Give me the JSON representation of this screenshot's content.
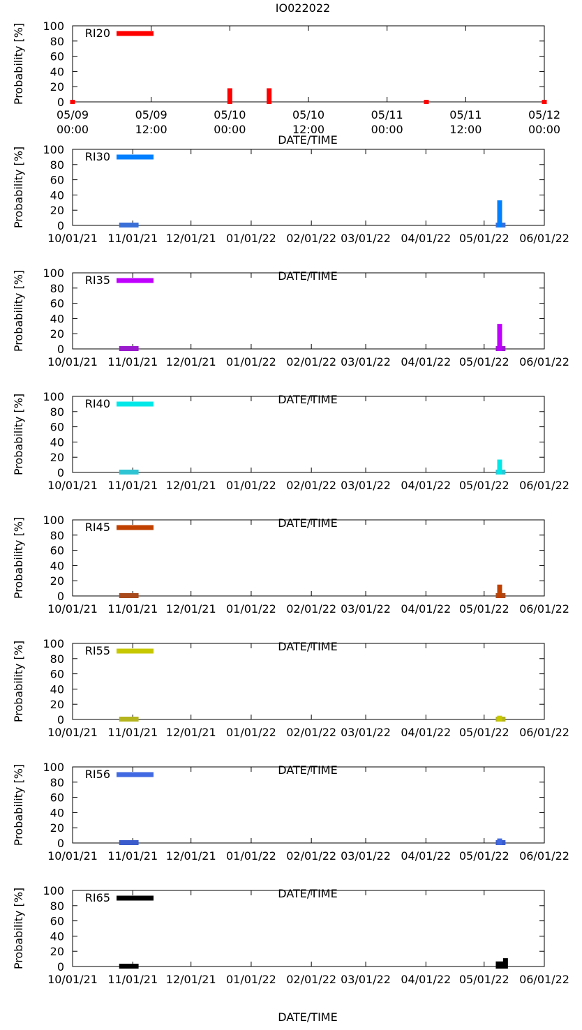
{
  "figure_title": "IO022022",
  "chart_data": [
    {
      "type": "bar",
      "title": "IO022022",
      "xlabel": "DATE/TIME",
      "ylabel": "Probability [%]",
      "series_label": "RI20",
      "color": "#ff0000",
      "x_range": [
        "2022-05-09 00:00",
        "2022-05-12 00:00"
      ],
      "ylim": [
        0,
        100
      ],
      "yticks": [
        "0",
        "20",
        "40",
        "60",
        "80",
        "100"
      ],
      "xticks": [
        {
          "value": "2022-05-09 00:00",
          "line1": "05/09",
          "line2": "00:00"
        },
        {
          "value": "2022-05-09 12:00",
          "line1": "05/09",
          "line2": "12:00"
        },
        {
          "value": "2022-05-10 00:00",
          "line1": "05/10",
          "line2": "00:00"
        },
        {
          "value": "2022-05-10 12:00",
          "line1": "05/10",
          "line2": "12:00"
        },
        {
          "value": "2022-05-11 00:00",
          "line1": "05/11",
          "line2": "00:00"
        },
        {
          "value": "2022-05-11 12:00",
          "line1": "05/11",
          "line2": "12:00"
        },
        {
          "value": "2022-05-12 00:00",
          "line1": "05/12",
          "line2": "00:00"
        }
      ],
      "bars": [
        {
          "x": "2022-05-09 00:00",
          "y": 0
        },
        {
          "x": "2022-05-10 00:00",
          "y": 17
        },
        {
          "x": "2022-05-10 06:00",
          "y": 17
        },
        {
          "x": "2022-05-11 06:00",
          "y": 0
        },
        {
          "x": "2022-05-12 00:00",
          "y": 0
        }
      ]
    },
    {
      "type": "bar",
      "xlabel": "DATE/TIME",
      "ylabel": "Probability [%]",
      "series_label": "RI30",
      "color": "#0080ff",
      "x_range": [
        "2021-10-01",
        "2022-06-01"
      ],
      "ylim": [
        0,
        100
      ],
      "yticks": [
        "0",
        "20",
        "40",
        "60",
        "80",
        "100"
      ],
      "xticks": [
        {
          "value": "2021-10-01",
          "line1": "10/01/21"
        },
        {
          "value": "2021-11-01",
          "line1": "11/01/21"
        },
        {
          "value": "2021-12-01",
          "line1": "12/01/21"
        },
        {
          "value": "2022-01-01",
          "line1": "01/01/22"
        },
        {
          "value": "2022-02-01",
          "line1": "02/01/22"
        },
        {
          "value": "2022-03-01",
          "line1": "03/01/22"
        },
        {
          "value": "2022-04-01",
          "line1": "04/01/22"
        },
        {
          "value": "2022-05-01",
          "line1": "05/01/22"
        },
        {
          "value": "2022-06-01",
          "line1": "06/01/22"
        }
      ],
      "bars": [
        {
          "x": "2022-05-09",
          "y": 32
        }
      ],
      "baseline_segments": [
        {
          "start": "2021-10-25",
          "end": "2021-11-04",
          "y": 0,
          "color": "#3a6fd8"
        },
        {
          "start": "2022-05-07",
          "end": "2022-05-12",
          "y": 0,
          "color": "#3a6fd8"
        }
      ]
    },
    {
      "type": "bar",
      "xlabel": "DATE/TIME",
      "ylabel": "Probability [%]",
      "series_label": "RI35",
      "color": "#c000ff",
      "x_range": [
        "2021-10-01",
        "2022-06-01"
      ],
      "ylim": [
        0,
        100
      ],
      "yticks": [
        "0",
        "20",
        "40",
        "60",
        "80",
        "100"
      ],
      "xticks": [
        {
          "value": "2021-10-01",
          "line1": "10/01/21"
        },
        {
          "value": "2021-11-01",
          "line1": "11/01/21"
        },
        {
          "value": "2021-12-01",
          "line1": "12/01/21"
        },
        {
          "value": "2022-01-01",
          "line1": "01/01/22"
        },
        {
          "value": "2022-02-01",
          "line1": "02/01/22"
        },
        {
          "value": "2022-03-01",
          "line1": "03/01/22"
        },
        {
          "value": "2022-04-01",
          "line1": "04/01/22"
        },
        {
          "value": "2022-05-01",
          "line1": "05/01/22"
        },
        {
          "value": "2022-06-01",
          "line1": "06/01/22"
        }
      ],
      "bars": [
        {
          "x": "2022-05-09",
          "y": 32
        }
      ],
      "baseline_segments": [
        {
          "start": "2021-10-25",
          "end": "2021-11-04",
          "y": 0,
          "color": "#9a1acd"
        },
        {
          "start": "2022-05-07",
          "end": "2022-05-12",
          "y": 0,
          "color": "#9a1acd"
        }
      ]
    },
    {
      "type": "bar",
      "xlabel": "DATE/TIME",
      "ylabel": "Probability [%]",
      "series_label": "RI40",
      "color": "#00e8e8",
      "x_range": [
        "2021-10-01",
        "2022-06-01"
      ],
      "ylim": [
        0,
        100
      ],
      "yticks": [
        "0",
        "20",
        "40",
        "60",
        "80",
        "100"
      ],
      "xticks": [
        {
          "value": "2021-10-01",
          "line1": "10/01/21"
        },
        {
          "value": "2021-11-01",
          "line1": "11/01/21"
        },
        {
          "value": "2021-12-01",
          "line1": "12/01/21"
        },
        {
          "value": "2022-01-01",
          "line1": "01/01/22"
        },
        {
          "value": "2022-02-01",
          "line1": "02/01/22"
        },
        {
          "value": "2022-03-01",
          "line1": "03/01/22"
        },
        {
          "value": "2022-04-01",
          "line1": "04/01/22"
        },
        {
          "value": "2022-05-01",
          "line1": "05/01/22"
        },
        {
          "value": "2022-06-01",
          "line1": "06/01/22"
        }
      ],
      "bars": [
        {
          "x": "2022-05-09",
          "y": 16
        }
      ],
      "baseline_segments": [
        {
          "start": "2021-10-25",
          "end": "2021-11-04",
          "y": 0,
          "color": "#2ec4d4"
        },
        {
          "start": "2022-05-07",
          "end": "2022-05-12",
          "y": 0,
          "color": "#2ec4d4"
        }
      ]
    },
    {
      "type": "bar",
      "xlabel": "DATE/TIME",
      "ylabel": "Probability [%]",
      "series_label": "RI45",
      "color": "#c04000",
      "x_range": [
        "2021-10-01",
        "2022-06-01"
      ],
      "ylim": [
        0,
        100
      ],
      "yticks": [
        "0",
        "20",
        "40",
        "60",
        "80",
        "100"
      ],
      "xticks": [
        {
          "value": "2021-10-01",
          "line1": "10/01/21"
        },
        {
          "value": "2021-11-01",
          "line1": "11/01/21"
        },
        {
          "value": "2021-12-01",
          "line1": "12/01/21"
        },
        {
          "value": "2022-01-01",
          "line1": "01/01/22"
        },
        {
          "value": "2022-02-01",
          "line1": "02/01/22"
        },
        {
          "value": "2022-03-01",
          "line1": "03/01/22"
        },
        {
          "value": "2022-04-01",
          "line1": "04/01/22"
        },
        {
          "value": "2022-05-01",
          "line1": "05/01/22"
        },
        {
          "value": "2022-06-01",
          "line1": "06/01/22"
        }
      ],
      "bars": [
        {
          "x": "2022-05-09",
          "y": 14
        }
      ],
      "baseline_segments": [
        {
          "start": "2021-10-25",
          "end": "2021-11-04",
          "y": 0,
          "color": "#a84a1c"
        },
        {
          "start": "2022-05-07",
          "end": "2022-05-12",
          "y": 0,
          "color": "#a84a1c"
        }
      ]
    },
    {
      "type": "bar",
      "xlabel": "DATE/TIME",
      "ylabel": "Probability [%]",
      "series_label": "RI55",
      "color": "#c8c800",
      "x_range": [
        "2021-10-01",
        "2022-06-01"
      ],
      "ylim": [
        0,
        100
      ],
      "yticks": [
        "0",
        "20",
        "40",
        "60",
        "80",
        "100"
      ],
      "xticks": [
        {
          "value": "2021-10-01",
          "line1": "10/01/21"
        },
        {
          "value": "2021-11-01",
          "line1": "11/01/21"
        },
        {
          "value": "2021-12-01",
          "line1": "12/01/21"
        },
        {
          "value": "2022-01-01",
          "line1": "01/01/22"
        },
        {
          "value": "2022-02-01",
          "line1": "02/01/22"
        },
        {
          "value": "2022-03-01",
          "line1": "03/01/22"
        },
        {
          "value": "2022-04-01",
          "line1": "04/01/22"
        },
        {
          "value": "2022-05-01",
          "line1": "05/01/22"
        },
        {
          "value": "2022-06-01",
          "line1": "06/01/22"
        }
      ],
      "bars": [
        {
          "x": "2022-05-09",
          "y": 4
        }
      ],
      "baseline_segments": [
        {
          "start": "2021-10-25",
          "end": "2021-11-04",
          "y": 0,
          "color": "#b4b41e"
        },
        {
          "start": "2022-05-07",
          "end": "2022-05-12",
          "y": 0,
          "color": "#b4b41e"
        }
      ]
    },
    {
      "type": "bar",
      "xlabel": "DATE/TIME",
      "ylabel": "Probability [%]",
      "series_label": "RI56",
      "color": "#4169e1",
      "x_range": [
        "2021-10-01",
        "2022-06-01"
      ],
      "ylim": [
        0,
        100
      ],
      "yticks": [
        "0",
        "20",
        "40",
        "60",
        "80",
        "100"
      ],
      "xticks": [
        {
          "value": "2021-10-01",
          "line1": "10/01/21"
        },
        {
          "value": "2021-11-01",
          "line1": "11/01/21"
        },
        {
          "value": "2021-12-01",
          "line1": "12/01/21"
        },
        {
          "value": "2022-01-01",
          "line1": "01/01/22"
        },
        {
          "value": "2022-02-01",
          "line1": "02/01/22"
        },
        {
          "value": "2022-03-01",
          "line1": "03/01/22"
        },
        {
          "value": "2022-04-01",
          "line1": "04/01/22"
        },
        {
          "value": "2022-05-01",
          "line1": "05/01/22"
        },
        {
          "value": "2022-06-01",
          "line1": "06/01/22"
        }
      ],
      "bars": [
        {
          "x": "2022-05-09",
          "y": 5
        }
      ],
      "baseline_segments": [
        {
          "start": "2021-10-25",
          "end": "2021-11-04",
          "y": 0,
          "color": "#3a5ccc"
        },
        {
          "start": "2022-05-07",
          "end": "2022-05-12",
          "y": 0,
          "color": "#3a5ccc"
        }
      ]
    },
    {
      "type": "bar",
      "xlabel": "DATE/TIME",
      "ylabel": "Probability [%]",
      "series_label": "RI65",
      "color": "#000000",
      "x_range": [
        "2021-10-01",
        "2022-06-01"
      ],
      "ylim": [
        0,
        100
      ],
      "yticks": [
        "0",
        "20",
        "40",
        "60",
        "80",
        "100"
      ],
      "xticks": [
        {
          "value": "2021-10-01",
          "line1": "10/01/21"
        },
        {
          "value": "2021-11-01",
          "line1": "11/01/21"
        },
        {
          "value": "2021-12-01",
          "line1": "12/01/21"
        },
        {
          "value": "2022-01-01",
          "line1": "01/01/22"
        },
        {
          "value": "2022-02-01",
          "line1": "02/01/22"
        },
        {
          "value": "2022-03-01",
          "line1": "03/01/22"
        },
        {
          "value": "2022-04-01",
          "line1": "04/01/22"
        },
        {
          "value": "2022-05-01",
          "line1": "05/01/22"
        },
        {
          "value": "2022-06-01",
          "line1": "06/01/22"
        }
      ],
      "bars": [
        {
          "x": "2022-05-12",
          "y": 10
        }
      ],
      "baseline_segments": [
        {
          "start": "2021-10-25",
          "end": "2021-11-04",
          "y": 0,
          "color": "#000000"
        },
        {
          "start": "2022-05-07",
          "end": "2022-05-12",
          "y": 3,
          "color": "#000000"
        }
      ]
    }
  ]
}
